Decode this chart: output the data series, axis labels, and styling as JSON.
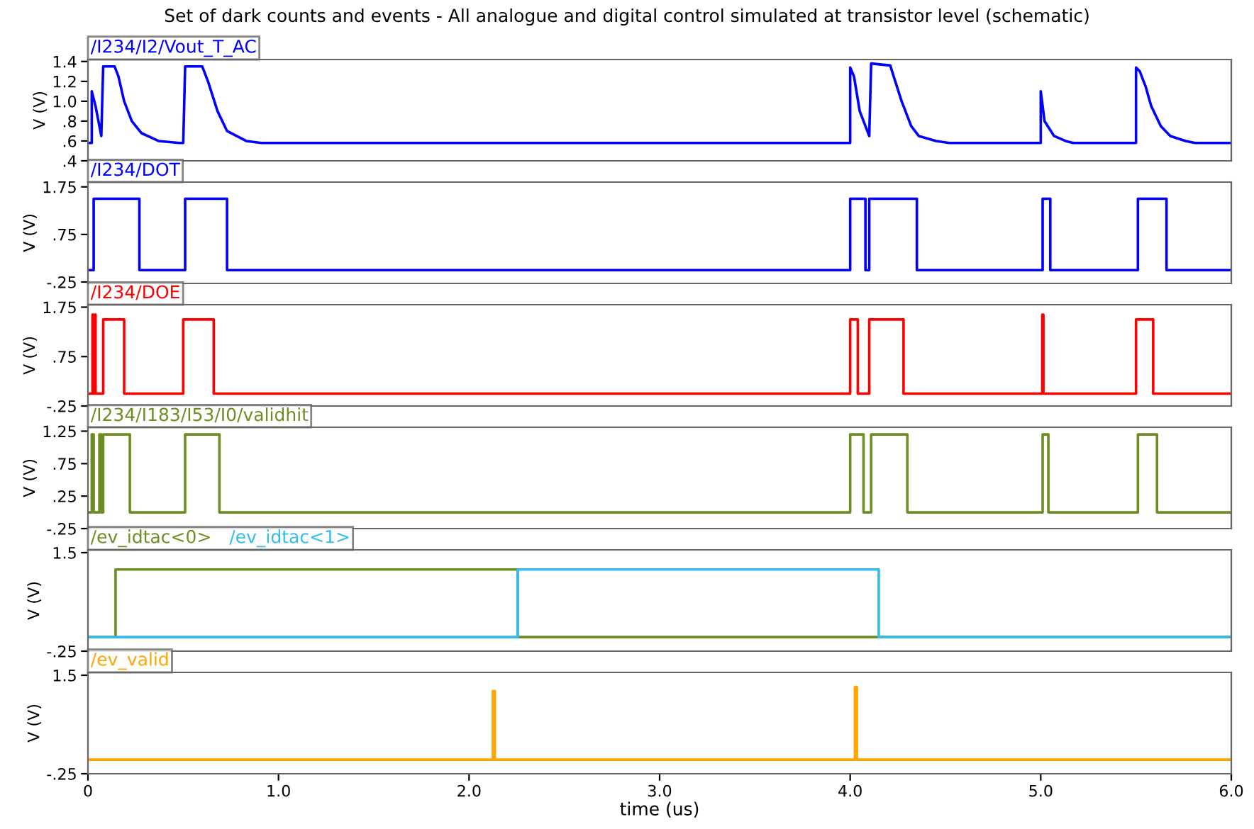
{
  "chart_data": [
    {
      "type": "line",
      "title": "Set of dark counts and events - All analogue and digital control simulated at transistor level (schematic)",
      "ylabel": "V (V)",
      "legend": "top left",
      "grid": false,
      "tick_labels": "y",
      "xlim": [
        0,
        6.0
      ],
      "ylim": [
        0.4,
        1.42
      ],
      "yticks": [
        {
          "value": 0.4,
          "label": ".4"
        },
        {
          "value": 0.6,
          "label": ".6"
        },
        {
          "value": 0.8,
          "label": ".8"
        },
        {
          "value": 1.0,
          "label": "1.0"
        },
        {
          "value": 1.2,
          "label": "1.2"
        },
        {
          "value": 1.4,
          "label": "1.4"
        }
      ],
      "series": [
        {
          "name": "/I234/I2/Vout_T_AC",
          "color": "#0000ff",
          "x": [
            0,
            0.02,
            0.02,
            0.04,
            0.07,
            0.08,
            0.14,
            0.16,
            0.19,
            0.23,
            0.28,
            0.37,
            0.48,
            0.5,
            0.51,
            0.6,
            0.63,
            0.68,
            0.73,
            0.83,
            0.91,
            4.0,
            4.0,
            4.02,
            4.05,
            4.1,
            4.11,
            4.21,
            4.27,
            4.32,
            4.36,
            4.45,
            4.52,
            5.0,
            5.0,
            5.02,
            5.07,
            5.13,
            5.17,
            5.5,
            5.5,
            5.52,
            5.55,
            5.58,
            5.63,
            5.68,
            5.76,
            5.81,
            6.0
          ],
          "values": [
            0.58,
            0.58,
            1.1,
            0.95,
            0.65,
            1.35,
            1.35,
            1.25,
            1.0,
            0.8,
            0.68,
            0.6,
            0.58,
            0.58,
            1.35,
            1.35,
            1.2,
            0.9,
            0.7,
            0.6,
            0.58,
            0.58,
            1.34,
            1.25,
            0.9,
            0.65,
            1.38,
            1.36,
            1.0,
            0.75,
            0.65,
            0.6,
            0.58,
            0.58,
            1.1,
            0.8,
            0.65,
            0.6,
            0.58,
            0.58,
            1.34,
            1.3,
            1.15,
            0.95,
            0.75,
            0.65,
            0.6,
            0.58,
            0.58
          ]
        }
      ]
    },
    {
      "type": "step",
      "ylabel": "V (V)",
      "legend": "top left",
      "grid": false,
      "tick_labels": "y",
      "xlim": [
        0,
        6.0
      ],
      "ylim": [
        -0.28,
        1.85
      ],
      "yticks": [
        {
          "value": -0.25,
          "label": "-.25"
        },
        {
          "value": 0.75,
          "label": ".75"
        },
        {
          "value": 1.75,
          "label": "1.75"
        }
      ],
      "series": [
        {
          "name": "/I234/DOT",
          "color": "#0000ff",
          "x": [
            0,
            0.03,
            0.27,
            0.51,
            0.73,
            4.0,
            4.08,
            4.1,
            4.35,
            5.01,
            5.05,
            5.51,
            5.66,
            6.0
          ],
          "values": [
            0,
            1.5,
            0,
            1.5,
            0,
            1.5,
            0,
            1.5,
            0,
            1.5,
            0,
            1.5,
            0,
            0
          ]
        }
      ]
    },
    {
      "type": "step",
      "ylabel": "V (V)",
      "legend": "top left",
      "grid": false,
      "tick_labels": "y",
      "xlim": [
        0,
        6.0
      ],
      "ylim": [
        -0.25,
        1.8
      ],
      "yticks": [
        {
          "value": -0.25,
          "label": "-.25"
        },
        {
          "value": 0.75,
          "label": ".75"
        },
        {
          "value": 1.75,
          "label": "1.75"
        }
      ],
      "series": [
        {
          "name": "/I234/DOE",
          "color": "#ff0000",
          "x": [
            0,
            0.024,
            0.028,
            0.036,
            0.04,
            0.08,
            0.19,
            0.5,
            0.66,
            4.0,
            4.04,
            4.1,
            4.28,
            5.008,
            5.014,
            5.5,
            5.59,
            6.0
          ],
          "values": [
            0,
            1.6,
            0,
            1.6,
            0,
            1.5,
            0,
            1.5,
            0,
            1.5,
            0,
            1.5,
            0,
            1.6,
            0,
            1.5,
            0,
            0
          ]
        }
      ]
    },
    {
      "type": "step",
      "ylabel": "V (V)",
      "legend": "top left",
      "grid": false,
      "tick_labels": "y",
      "xlim": [
        0,
        6.0
      ],
      "ylim": [
        -0.25,
        1.31
      ],
      "yticks": [
        {
          "value": -0.25,
          "label": "-.25"
        },
        {
          "value": 0.25,
          "label": ".25"
        },
        {
          "value": 0.75,
          "label": ".75"
        },
        {
          "value": 1.25,
          "label": "1.25"
        }
      ],
      "series": [
        {
          "name": "/I234/I183/I53/I0/validhit",
          "color": "#6b8e23",
          "x": [
            0,
            0.02,
            0.03,
            0.06,
            0.07,
            0.08,
            0.22,
            0.51,
            0.69,
            4.0,
            4.07,
            4.11,
            4.3,
            5.01,
            5.04,
            5.51,
            5.61,
            6.0
          ],
          "values": [
            0,
            1.2,
            0,
            1.2,
            0,
            1.2,
            0,
            1.2,
            0,
            1.2,
            0,
            1.2,
            0,
            1.2,
            0,
            1.2,
            0,
            0
          ]
        }
      ]
    },
    {
      "type": "step",
      "ylabel": "V (V)",
      "legend": "top left",
      "grid": false,
      "tick_labels": "y",
      "xlim": [
        0,
        6.0
      ],
      "ylim": [
        -0.25,
        1.55
      ],
      "yticks": [
        {
          "value": -0.25,
          "label": "-.25"
        },
        {
          "value": 1.5,
          "label": "1.5"
        }
      ],
      "series": [
        {
          "name": "/ev_idtac<0>",
          "color": "#6b8e23",
          "x": [
            0,
            0.145,
            2.255,
            6.0
          ],
          "values": [
            0,
            1.2,
            0,
            0
          ]
        },
        {
          "name": "/ev_idtac<1>",
          "color": "#33bbee",
          "x": [
            0,
            2.255,
            4.15,
            6.0
          ],
          "values": [
            0,
            1.2,
            0,
            0
          ]
        }
      ]
    },
    {
      "type": "step",
      "xlabel": "time (us)",
      "ylabel": "V (V)",
      "legend": "top left",
      "grid": false,
      "xlim": [
        0,
        6.0
      ],
      "xticks": [
        0,
        {
          "value": 1,
          "label": "1.0"
        },
        {
          "value": 2,
          "label": "2.0"
        },
        {
          "value": 3,
          "label": "3.0"
        },
        {
          "value": 4,
          "label": "4.0"
        },
        {
          "value": 5,
          "label": "5.0"
        },
        {
          "value": 6,
          "label": "6.0"
        }
      ],
      "ylim": [
        -0.25,
        1.55
      ],
      "yticks": [
        {
          "value": -0.25,
          "label": "-.25"
        },
        {
          "value": 1.5,
          "label": "1.5"
        }
      ],
      "series": [
        {
          "name": "/ev_valid",
          "color": "#ffa500",
          "x": [
            0,
            2.125,
            2.135,
            4.025,
            4.035,
            6.0
          ],
          "values": [
            0,
            1.22,
            0,
            1.29,
            0,
            0
          ]
        }
      ]
    }
  ]
}
